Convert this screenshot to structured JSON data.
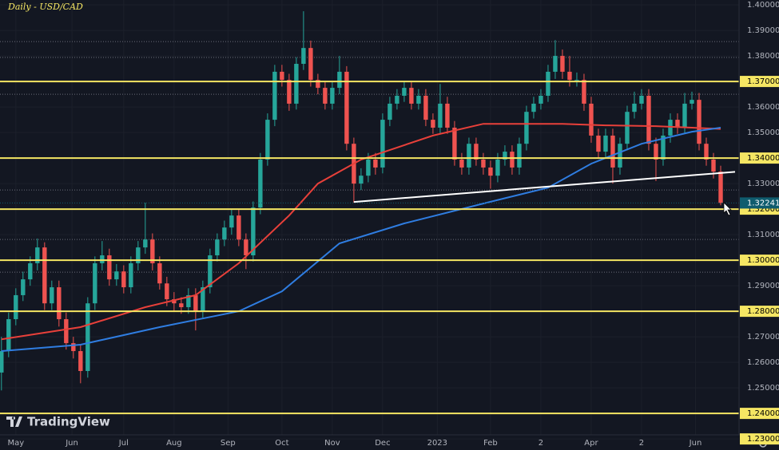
{
  "chart_data": {
    "type": "candlestick",
    "title": "Daily - USD/CAD",
    "watermark": "TradingView",
    "up_color": "#26a69a",
    "down_color": "#ef5350",
    "xlim": [
      -0.2,
      102
    ],
    "xticks": [
      {
        "value": 2,
        "label": "May"
      },
      {
        "value": 9.8,
        "label": "Jun"
      },
      {
        "value": 17,
        "label": "Jul"
      },
      {
        "value": 24,
        "label": "Aug"
      },
      {
        "value": 31.5,
        "label": "Sep"
      },
      {
        "value": 39,
        "label": "Oct"
      },
      {
        "value": 46,
        "label": "Nov"
      },
      {
        "value": 53,
        "label": "Dec"
      },
      {
        "value": 60.6,
        "label": "2023"
      },
      {
        "value": 68,
        "label": "Feb"
      },
      {
        "value": 75,
        "label": "2"
      },
      {
        "value": 82,
        "label": "Apr"
      },
      {
        "value": 89,
        "label": "2"
      },
      {
        "value": 96.5,
        "label": "Jun"
      }
    ],
    "ylim": [
      1.2316,
      1.4019
    ],
    "yticks": [
      {
        "value": 1.4,
        "label": "1.40000"
      },
      {
        "value": 1.39,
        "label": "1.39000"
      },
      {
        "value": 1.38,
        "label": "1.38000"
      },
      {
        "value": 1.37,
        "label": "1.37000"
      },
      {
        "value": 1.36,
        "label": "1.36000"
      },
      {
        "value": 1.35,
        "label": "1.35000"
      },
      {
        "value": 1.34,
        "label": "1.34000"
      },
      {
        "value": 1.33,
        "label": "1.33000"
      },
      {
        "value": 1.32,
        "label": "1.32000"
      },
      {
        "value": 1.31,
        "label": "1.31000"
      },
      {
        "value": 1.3,
        "label": "1.30000"
      },
      {
        "value": 1.29,
        "label": "1.29000"
      },
      {
        "value": 1.28,
        "label": "1.28000"
      },
      {
        "value": 1.27,
        "label": "1.27000"
      },
      {
        "value": 1.26,
        "label": "1.26000"
      },
      {
        "value": 1.25,
        "label": "1.25000"
      },
      {
        "value": 1.24,
        "label": "1.24000"
      },
      {
        "value": 1.23,
        "label": "1.23000"
      }
    ],
    "highlighted_ticks": [
      1.37,
      1.34,
      1.32,
      1.3,
      1.28,
      1.24,
      1.23
    ],
    "level_lines": [
      1.37,
      1.34,
      1.32,
      1.3,
      1.28,
      1.24
    ],
    "level_color": "#f5e663",
    "dotted_lines": [
      1.3856,
      1.3794,
      1.365,
      1.3275,
      1.3081,
      1.2953
    ],
    "current_price": 1.32241,
    "current_price_color": "#0f5c6e",
    "candles": {
      "open": [
        1.256,
        1.2644,
        1.2769,
        1.2863,
        1.2925,
        1.2988,
        1.305,
        1.2831,
        1.2894,
        1.2769,
        1.2675,
        1.2644,
        1.2566,
        1.2831,
        1.2988,
        1.3019,
        1.2925,
        1.2956,
        1.2894,
        1.2988,
        1.305,
        1.3081,
        1.2988,
        1.2909,
        1.2847,
        1.2831,
        1.2816,
        1.2863,
        1.28,
        1.2894,
        1.3019,
        1.3081,
        1.3128,
        1.3175,
        1.3081,
        1.3019,
        1.3206,
        1.3394,
        1.355,
        1.3738,
        1.3706,
        1.3613,
        1.3769,
        1.3831,
        1.3706,
        1.3675,
        1.3613,
        1.3675,
        1.3738,
        1.3456,
        1.33,
        1.3331,
        1.3394,
        1.3363,
        1.355,
        1.3613,
        1.3644,
        1.3675,
        1.3613,
        1.3644,
        1.355,
        1.3519,
        1.3613,
        1.3519,
        1.3394,
        1.3363,
        1.3456,
        1.3394,
        1.3363,
        1.3331,
        1.3394,
        1.3425,
        1.3363,
        1.3456,
        1.3581,
        1.3613,
        1.3644,
        1.3738,
        1.38,
        1.3738,
        1.3706,
        1.3706,
        1.3613,
        1.3488,
        1.3425,
        1.3488,
        1.3363,
        1.3456,
        1.3581,
        1.3613,
        1.3644,
        1.3456,
        1.3394,
        1.3488,
        1.355,
        1.3519,
        1.3613,
        1.3628,
        1.3456,
        1.3394,
        1.3347
      ],
      "high": [
        1.27,
        1.2795,
        1.289,
        1.2955,
        1.3015,
        1.3085,
        1.307,
        1.292,
        1.292,
        1.2795,
        1.27,
        1.267,
        1.2855,
        1.3015,
        1.3075,
        1.3045,
        1.2985,
        1.298,
        1.3015,
        1.3075,
        1.3225,
        1.3105,
        1.3015,
        1.2935,
        1.2875,
        1.2855,
        1.289,
        1.289,
        1.292,
        1.3045,
        1.3105,
        1.3155,
        1.32,
        1.32,
        1.3105,
        1.323,
        1.342,
        1.3575,
        1.3765,
        1.3765,
        1.373,
        1.3795,
        1.3975,
        1.386,
        1.373,
        1.37,
        1.37,
        1.38,
        1.376,
        1.348,
        1.336,
        1.342,
        1.342,
        1.3575,
        1.364,
        1.367,
        1.37,
        1.37,
        1.367,
        1.367,
        1.3575,
        1.369,
        1.364,
        1.3545,
        1.342,
        1.348,
        1.348,
        1.342,
        1.339,
        1.342,
        1.345,
        1.345,
        1.348,
        1.3605,
        1.364,
        1.367,
        1.3765,
        1.3862,
        1.3825,
        1.38,
        1.3735,
        1.373,
        1.364,
        1.3515,
        1.3515,
        1.3515,
        1.348,
        1.3605,
        1.366,
        1.367,
        1.367,
        1.348,
        1.3515,
        1.3575,
        1.3575,
        1.3655,
        1.366,
        1.3655,
        1.348,
        1.342,
        1.337
      ],
      "low": [
        1.249,
        1.262,
        1.2745,
        1.284,
        1.29,
        1.296,
        1.2805,
        1.2805,
        1.274,
        1.265,
        1.2615,
        1.2518,
        1.254,
        1.2805,
        1.296,
        1.29,
        1.29,
        1.287,
        1.287,
        1.296,
        1.3025,
        1.296,
        1.2885,
        1.282,
        1.28,
        1.279,
        1.279,
        1.2725,
        1.2775,
        1.287,
        1.2995,
        1.3055,
        1.31,
        1.3055,
        1.2965,
        1.2995,
        1.318,
        1.337,
        1.3525,
        1.368,
        1.3585,
        1.359,
        1.3745,
        1.368,
        1.365,
        1.359,
        1.359,
        1.365,
        1.343,
        1.3225,
        1.3275,
        1.3305,
        1.3335,
        1.334,
        1.3525,
        1.359,
        1.362,
        1.359,
        1.359,
        1.3525,
        1.3495,
        1.3495,
        1.3495,
        1.337,
        1.3335,
        1.3335,
        1.337,
        1.3335,
        1.328,
        1.3305,
        1.337,
        1.3335,
        1.3335,
        1.343,
        1.3555,
        1.359,
        1.362,
        1.371,
        1.371,
        1.368,
        1.368,
        1.3585,
        1.346,
        1.34,
        1.34,
        1.33,
        1.3335,
        1.343,
        1.3555,
        1.359,
        1.343,
        1.331,
        1.337,
        1.346,
        1.3495,
        1.3495,
        1.359,
        1.343,
        1.337,
        1.332,
        1.3215
      ],
      "close": [
        1.2644,
        1.2769,
        1.2863,
        1.2925,
        1.2988,
        1.305,
        1.2831,
        1.2894,
        1.2769,
        1.2675,
        1.2644,
        1.2566,
        1.2831,
        1.2988,
        1.3019,
        1.2925,
        1.2956,
        1.2894,
        1.2988,
        1.305,
        1.3081,
        1.2988,
        1.2909,
        1.2847,
        1.2831,
        1.2816,
        1.2863,
        1.28,
        1.2894,
        1.3019,
        1.3081,
        1.3128,
        1.3175,
        1.3081,
        1.3019,
        1.3206,
        1.3394,
        1.355,
        1.3738,
        1.3706,
        1.3613,
        1.3769,
        1.3831,
        1.3706,
        1.3675,
        1.3613,
        1.3675,
        1.3738,
        1.3456,
        1.33,
        1.3331,
        1.3394,
        1.3363,
        1.355,
        1.3613,
        1.3644,
        1.3675,
        1.3613,
        1.3644,
        1.355,
        1.3519,
        1.3613,
        1.3519,
        1.3394,
        1.3363,
        1.3456,
        1.3394,
        1.3363,
        1.3331,
        1.3394,
        1.3425,
        1.3363,
        1.3456,
        1.3581,
        1.3613,
        1.3644,
        1.3738,
        1.38,
        1.3738,
        1.3706,
        1.3706,
        1.3613,
        1.3488,
        1.3425,
        1.3488,
        1.3363,
        1.3456,
        1.3581,
        1.3613,
        1.3644,
        1.3456,
        1.3394,
        1.3488,
        1.355,
        1.3519,
        1.3613,
        1.3628,
        1.3456,
        1.3394,
        1.3347,
        1.3224
      ]
    },
    "lines": [
      {
        "color": "#e8403a",
        "x": [
          0,
          11,
          20,
          27,
          33,
          40,
          44,
          50,
          60,
          67,
          70,
          78,
          84,
          91,
          96,
          100
        ],
        "values": [
          1.269,
          1.2738,
          1.2816,
          1.2863,
          1.2988,
          1.3175,
          1.33,
          1.3394,
          1.3488,
          1.3534,
          1.3534,
          1.3534,
          1.3528,
          1.3525,
          1.3519,
          1.3514
        ]
      },
      {
        "color": "#2f7de1",
        "x": [
          0,
          11,
          22,
          33,
          39,
          47,
          56,
          67,
          76,
          82,
          89,
          96,
          100
        ],
        "values": [
          1.2644,
          1.2669,
          1.2738,
          1.28,
          1.2878,
          1.3066,
          1.3144,
          1.3222,
          1.3284,
          1.3378,
          1.3456,
          1.3503,
          1.3519
        ]
      },
      {
        "color": "#ffffff",
        "x": [
          49,
          102
        ],
        "values": [
          1.3228,
          1.3346
        ]
      }
    ]
  }
}
